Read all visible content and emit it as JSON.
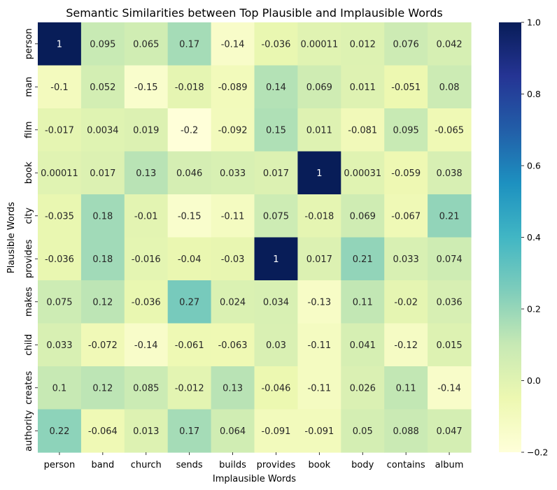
{
  "chart_data": {
    "type": "heatmap",
    "title": "Semantic Similarities between Top Plausible and Implausible Words",
    "xlabel": "Implausible Words",
    "ylabel": "Plausible Words",
    "x_categories": [
      "person",
      "band",
      "church",
      "sends",
      "builds",
      "provides",
      "book",
      "body",
      "contains",
      "album"
    ],
    "y_categories": [
      "person",
      "man",
      "film",
      "book",
      "city",
      "provides",
      "makes",
      "child",
      "creates",
      "authority"
    ],
    "values": [
      [
        1,
        0.095,
        0.065,
        0.17,
        -0.14,
        -0.036,
        0.00011,
        0.012,
        0.076,
        0.042
      ],
      [
        -0.1,
        0.052,
        -0.15,
        -0.018,
        -0.089,
        0.14,
        0.069,
        0.011,
        -0.051,
        0.08
      ],
      [
        -0.017,
        0.0034,
        0.019,
        -0.2,
        -0.092,
        0.15,
        0.011,
        -0.081,
        0.095,
        -0.065
      ],
      [
        0.00011,
        0.017,
        0.13,
        0.046,
        0.033,
        0.017,
        1,
        0.00031,
        -0.059,
        0.038
      ],
      [
        -0.035,
        0.18,
        -0.01,
        -0.15,
        -0.11,
        0.075,
        -0.018,
        0.069,
        -0.067,
        0.21
      ],
      [
        -0.036,
        0.18,
        -0.016,
        -0.04,
        -0.03,
        1,
        0.017,
        0.21,
        0.033,
        0.074
      ],
      [
        0.075,
        0.12,
        -0.036,
        0.27,
        0.024,
        0.034,
        -0.13,
        0.11,
        -0.02,
        0.036
      ],
      [
        0.033,
        -0.072,
        -0.14,
        -0.061,
        -0.063,
        0.03,
        -0.11,
        0.041,
        -0.12,
        0.015
      ],
      [
        0.1,
        0.12,
        0.085,
        -0.012,
        0.13,
        -0.046,
        -0.11,
        0.026,
        0.11,
        -0.14
      ],
      [
        0.22,
        -0.064,
        0.013,
        0.17,
        0.064,
        -0.091,
        -0.091,
        0.05,
        0.088,
        0.047
      ]
    ],
    "value_labels": [
      [
        "1",
        "0.095",
        "0.065",
        "0.17",
        "-0.14",
        "-0.036",
        "0.00011",
        "0.012",
        "0.076",
        "0.042"
      ],
      [
        "-0.1",
        "0.052",
        "-0.15",
        "-0.018",
        "-0.089",
        "0.14",
        "0.069",
        "0.011",
        "-0.051",
        "0.08"
      ],
      [
        "-0.017",
        "0.0034",
        "0.019",
        "-0.2",
        "-0.092",
        "0.15",
        "0.011",
        "-0.081",
        "0.095",
        "-0.065"
      ],
      [
        "0.00011",
        "0.017",
        "0.13",
        "0.046",
        "0.033",
        "0.017",
        "1",
        "0.00031",
        "-0.059",
        "0.038"
      ],
      [
        "-0.035",
        "0.18",
        "-0.01",
        "-0.15",
        "-0.11",
        "0.075",
        "-0.018",
        "0.069",
        "-0.067",
        "0.21"
      ],
      [
        "-0.036",
        "0.18",
        "-0.016",
        "-0.04",
        "-0.03",
        "1",
        "0.017",
        "0.21",
        "0.033",
        "0.074"
      ],
      [
        "0.075",
        "0.12",
        "-0.036",
        "0.27",
        "0.024",
        "0.034",
        "-0.13",
        "0.11",
        "-0.02",
        "0.036"
      ],
      [
        "0.033",
        "-0.072",
        "-0.14",
        "-0.061",
        "-0.063",
        "0.03",
        "-0.11",
        "0.041",
        "-0.12",
        "0.015"
      ],
      [
        "0.1",
        "0.12",
        "0.085",
        "-0.012",
        "0.13",
        "-0.046",
        "-0.11",
        "0.026",
        "0.11",
        "-0.14"
      ],
      [
        "0.22",
        "-0.064",
        "0.013",
        "0.17",
        "0.064",
        "-0.091",
        "-0.091",
        "0.05",
        "0.088",
        "0.047"
      ]
    ],
    "colorscale": "YlGnBu",
    "vmin": -0.2,
    "vmax": 1.0,
    "colorbar_ticks": [
      -0.2,
      0.0,
      0.2,
      0.4,
      0.6,
      0.8,
      1.0
    ],
    "colorbar_tick_labels": [
      "−0.2",
      "0.0",
      "0.2",
      "0.4",
      "0.6",
      "0.8",
      "1.0"
    ]
  }
}
